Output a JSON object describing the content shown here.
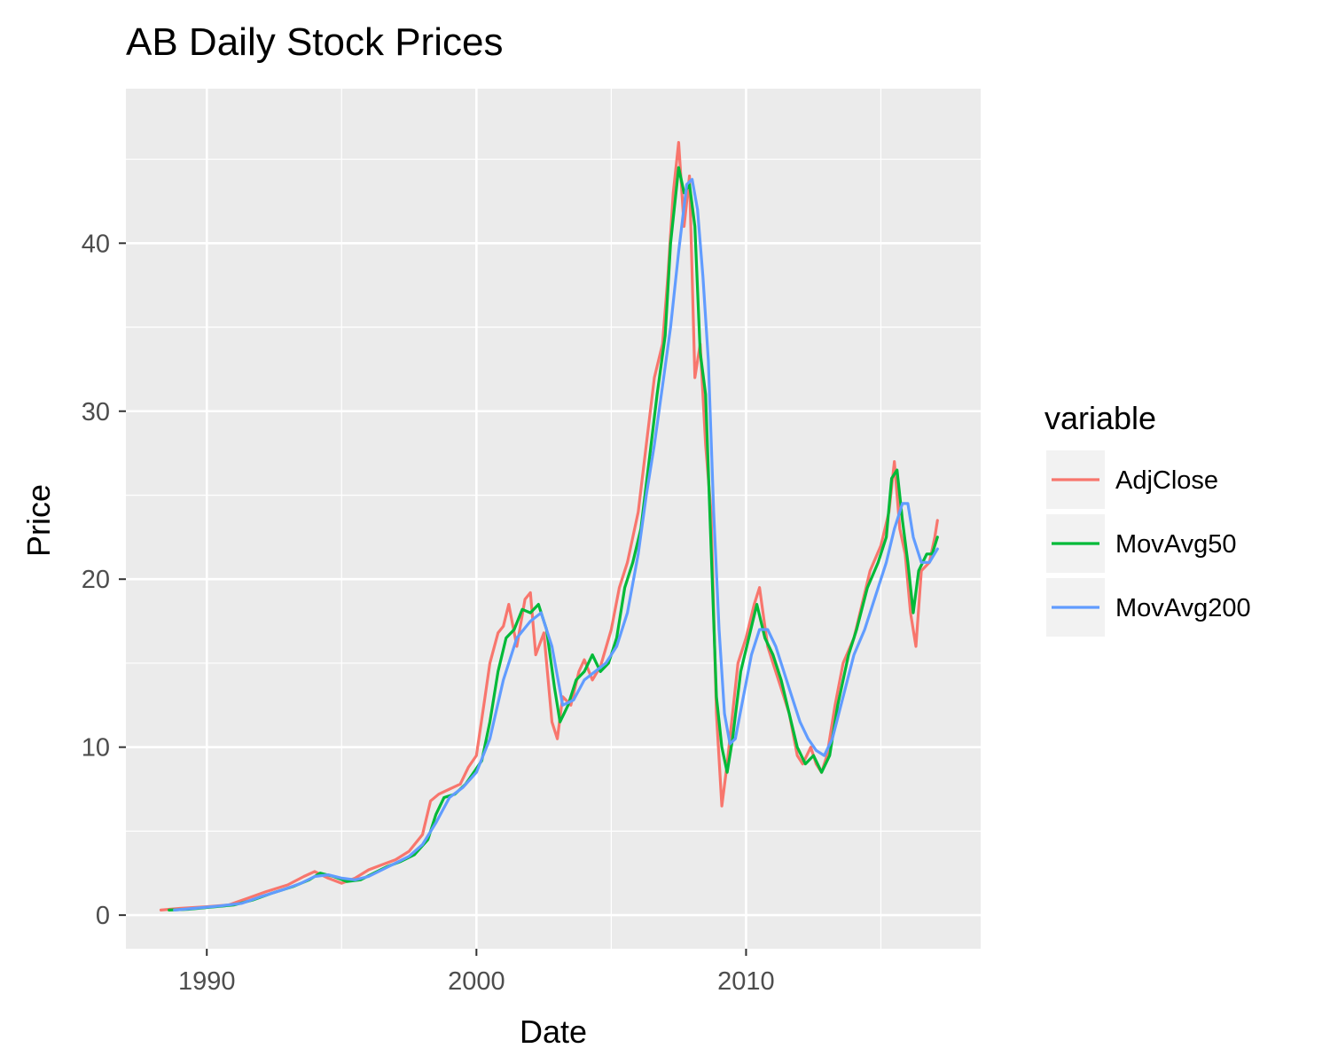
{
  "chart_data": {
    "type": "line",
    "title": "AB Daily Stock Prices",
    "xlabel": "Date",
    "ylabel": "Price",
    "xlim": [
      1987.0,
      2018.7
    ],
    "ylim": [
      -2.0,
      49.2
    ],
    "x_ticks": [
      1990,
      2000,
      2010
    ],
    "x_tick_labels": [
      "1990",
      "2000",
      "2010"
    ],
    "y_ticks": [
      0,
      10,
      20,
      30,
      40
    ],
    "y_tick_labels": [
      "0",
      "10",
      "20",
      "30",
      "40"
    ],
    "grid": true,
    "legend": {
      "title": "variable",
      "position": "right"
    },
    "series": [
      {
        "name": "AdjClose",
        "color": "#F8766D",
        "x": [
          1988.3,
          1989.0,
          1990.0,
          1990.8,
          1991.5,
          1992.2,
          1993.0,
          1993.6,
          1994.0,
          1994.5,
          1995.0,
          1995.5,
          1996.0,
          1996.5,
          1997.0,
          1997.5,
          1998.0,
          1998.3,
          1998.6,
          1999.0,
          1999.4,
          1999.7,
          2000.0,
          2000.3,
          2000.5,
          2000.8,
          2001.0,
          2001.2,
          2001.5,
          2001.8,
          2002.0,
          2002.2,
          2002.5,
          2002.8,
          2003.0,
          2003.2,
          2003.5,
          2003.8,
          2004.0,
          2004.3,
          2004.6,
          2005.0,
          2005.3,
          2005.6,
          2006.0,
          2006.3,
          2006.6,
          2006.9,
          2007.1,
          2007.3,
          2007.5,
          2007.7,
          2007.9,
          2008.1,
          2008.3,
          2008.5,
          2008.7,
          2008.9,
          2009.1,
          2009.3,
          2009.5,
          2009.7,
          2010.0,
          2010.3,
          2010.5,
          2010.8,
          2011.0,
          2011.3,
          2011.6,
          2011.9,
          2012.1,
          2012.4,
          2012.6,
          2012.8,
          2013.0,
          2013.3,
          2013.6,
          2014.0,
          2014.3,
          2014.6,
          2015.0,
          2015.3,
          2015.5,
          2015.7,
          2015.9,
          2016.1,
          2016.3,
          2016.5,
          2016.8,
          2017.0,
          2017.1
        ],
        "values": [
          0.3,
          0.4,
          0.5,
          0.6,
          1.0,
          1.4,
          1.8,
          2.3,
          2.6,
          2.2,
          1.9,
          2.2,
          2.7,
          3.0,
          3.3,
          3.8,
          4.8,
          6.8,
          7.2,
          7.5,
          7.8,
          8.8,
          9.5,
          12.8,
          15.0,
          16.8,
          17.2,
          18.5,
          16.0,
          18.8,
          19.2,
          15.5,
          16.8,
          11.5,
          10.5,
          13.0,
          12.5,
          14.5,
          15.2,
          14.0,
          14.8,
          17.0,
          19.5,
          21.0,
          24.0,
          28.0,
          32.0,
          34.0,
          38.0,
          43.0,
          46.0,
          41.0,
          44.0,
          32.0,
          34.0,
          28.0,
          24.0,
          12.0,
          6.5,
          9.0,
          12.0,
          15.0,
          16.5,
          18.5,
          19.5,
          16.0,
          15.0,
          13.5,
          12.0,
          9.5,
          9.0,
          10.0,
          9.0,
          8.5,
          9.5,
          12.5,
          15.0,
          16.5,
          18.5,
          20.5,
          22.0,
          24.0,
          27.0,
          23.0,
          21.5,
          18.0,
          16.0,
          20.5,
          21.0,
          22.5,
          23.5
        ]
      },
      {
        "name": "MovAvg50",
        "color": "#00BA38",
        "x": [
          1988.6,
          1989.3,
          1990.3,
          1991.0,
          1991.7,
          1992.4,
          1993.2,
          1993.8,
          1994.2,
          1994.7,
          1995.2,
          1995.7,
          1996.2,
          1996.7,
          1997.2,
          1997.7,
          1998.2,
          1998.5,
          1998.8,
          1999.2,
          1999.6,
          1999.9,
          2000.2,
          2000.5,
          2000.8,
          2001.1,
          2001.4,
          2001.7,
          2002.0,
          2002.3,
          2002.6,
          2002.9,
          2003.1,
          2003.4,
          2003.7,
          2004.0,
          2004.3,
          2004.6,
          2004.9,
          2005.2,
          2005.5,
          2005.8,
          2006.1,
          2006.4,
          2006.7,
          2007.0,
          2007.2,
          2007.5,
          2007.7,
          2007.9,
          2008.1,
          2008.3,
          2008.5,
          2008.7,
          2008.9,
          2009.1,
          2009.3,
          2009.5,
          2009.8,
          2010.1,
          2010.4,
          2010.7,
          2011.0,
          2011.3,
          2011.6,
          2011.9,
          2012.2,
          2012.5,
          2012.8,
          2013.1,
          2013.4,
          2013.8,
          2014.1,
          2014.5,
          2014.9,
          2015.2,
          2015.4,
          2015.6,
          2015.8,
          2016.0,
          2016.2,
          2016.4,
          2016.7,
          2016.9,
          2017.1
        ],
        "values": [
          0.3,
          0.35,
          0.5,
          0.6,
          0.9,
          1.3,
          1.7,
          2.1,
          2.5,
          2.3,
          2.0,
          2.1,
          2.5,
          2.9,
          3.2,
          3.6,
          4.5,
          6.0,
          7.0,
          7.2,
          7.8,
          8.5,
          9.2,
          11.5,
          14.5,
          16.5,
          17.0,
          18.2,
          18.0,
          18.5,
          17.0,
          13.5,
          11.5,
          12.5,
          14.0,
          14.5,
          15.5,
          14.5,
          15.0,
          16.5,
          19.5,
          21.0,
          23.0,
          27.0,
          31.0,
          34.5,
          40.0,
          44.5,
          43.0,
          43.5,
          41.0,
          33.5,
          31.0,
          22.0,
          13.0,
          10.0,
          8.5,
          10.5,
          14.5,
          16.5,
          18.5,
          16.5,
          15.5,
          14.0,
          12.0,
          10.0,
          9.0,
          9.5,
          8.5,
          9.5,
          12.5,
          15.5,
          17.0,
          19.5,
          21.0,
          22.5,
          26.0,
          26.5,
          23.5,
          21.0,
          18.0,
          20.5,
          21.5,
          21.5,
          22.5
        ]
      },
      {
        "name": "MovAvg200",
        "color": "#619CFF",
        "x": [
          1988.8,
          1989.5,
          1990.5,
          1991.3,
          1992.0,
          1992.8,
          1993.5,
          1994.0,
          1994.5,
          1995.0,
          1995.5,
          1996.0,
          1996.5,
          1997.0,
          1997.5,
          1998.0,
          1998.5,
          1999.0,
          1999.5,
          2000.0,
          2000.5,
          2001.0,
          2001.5,
          2002.0,
          2002.4,
          2002.8,
          2003.2,
          2003.6,
          2004.0,
          2004.4,
          2004.8,
          2005.2,
          2005.6,
          2006.0,
          2006.3,
          2006.6,
          2006.9,
          2007.2,
          2007.5,
          2007.8,
          2008.0,
          2008.2,
          2008.4,
          2008.6,
          2008.8,
          2009.0,
          2009.2,
          2009.4,
          2009.6,
          2009.9,
          2010.2,
          2010.5,
          2010.8,
          2011.1,
          2011.4,
          2011.7,
          2012.0,
          2012.3,
          2012.6,
          2012.9,
          2013.2,
          2013.6,
          2014.0,
          2014.4,
          2014.8,
          2015.2,
          2015.5,
          2015.8,
          2016.0,
          2016.2,
          2016.5,
          2016.8,
          2017.1
        ],
        "values": [
          0.3,
          0.4,
          0.55,
          0.7,
          1.1,
          1.5,
          1.9,
          2.3,
          2.4,
          2.2,
          2.1,
          2.3,
          2.7,
          3.1,
          3.5,
          4.2,
          5.5,
          7.0,
          7.6,
          8.5,
          10.5,
          14.0,
          16.5,
          17.5,
          18.0,
          16.0,
          12.5,
          12.8,
          14.0,
          14.5,
          15.0,
          16.0,
          18.0,
          21.5,
          25.0,
          28.0,
          31.5,
          35.0,
          39.5,
          43.5,
          43.8,
          42.0,
          38.0,
          33.0,
          24.0,
          17.0,
          12.0,
          10.2,
          10.5,
          13.0,
          15.5,
          17.0,
          17.0,
          16.0,
          14.5,
          13.0,
          11.5,
          10.5,
          9.8,
          9.5,
          10.5,
          13.0,
          15.5,
          17.0,
          19.0,
          21.0,
          23.0,
          24.5,
          24.5,
          22.5,
          21.0,
          21.0,
          21.8
        ]
      }
    ]
  }
}
